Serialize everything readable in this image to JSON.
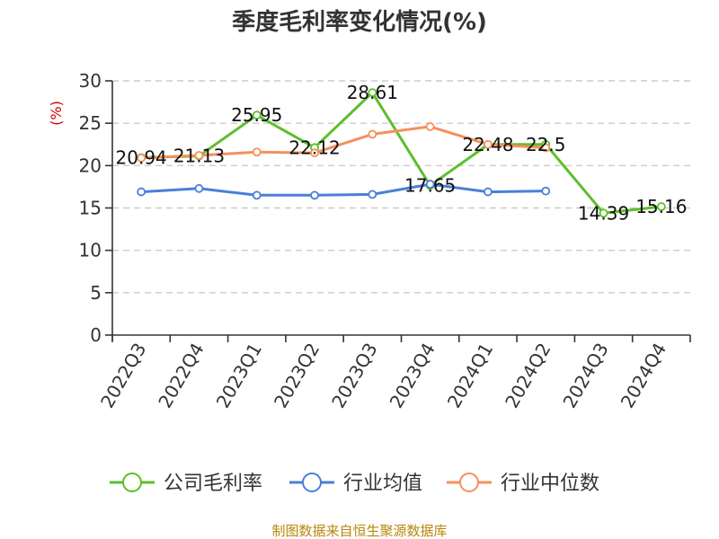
{
  "chart_data": {
    "type": "line",
    "title": "季度毛利率变化情况(%)",
    "ylabel": "(%)",
    "xlabel": "",
    "ylim": [
      0,
      30
    ],
    "yticks": [
      0,
      5,
      10,
      15,
      20,
      25,
      30
    ],
    "grid": true,
    "legend_position": "bottom",
    "categories": [
      "2022Q3",
      "2022Q4",
      "2023Q1",
      "2023Q2",
      "2023Q3",
      "2023Q4",
      "2024Q1",
      "2024Q2",
      "2024Q3",
      "2024Q4"
    ],
    "series": [
      {
        "name": "公司毛利率",
        "color": "#5cbf2a",
        "values": [
          20.94,
          21.13,
          25.95,
          22.12,
          28.61,
          17.65,
          22.48,
          22.5,
          14.39,
          15.16
        ],
        "labels": [
          "20.94",
          "21.13",
          "25.95",
          "22.12",
          "28.61",
          "17.65",
          "22.48",
          "22.5",
          "14.39",
          "15.16"
        ]
      },
      {
        "name": "行业均值",
        "color": "#4a7fd9",
        "values": [
          16.9,
          17.3,
          16.5,
          16.5,
          16.6,
          17.8,
          16.9,
          17.0,
          null,
          null
        ]
      },
      {
        "name": "行业中位数",
        "color": "#f5905b",
        "values": [
          20.9,
          21.2,
          21.6,
          21.5,
          23.7,
          24.6,
          22.5,
          22.1,
          null,
          null
        ]
      }
    ]
  },
  "source_text": "制图数据来自恒生聚源数据库"
}
